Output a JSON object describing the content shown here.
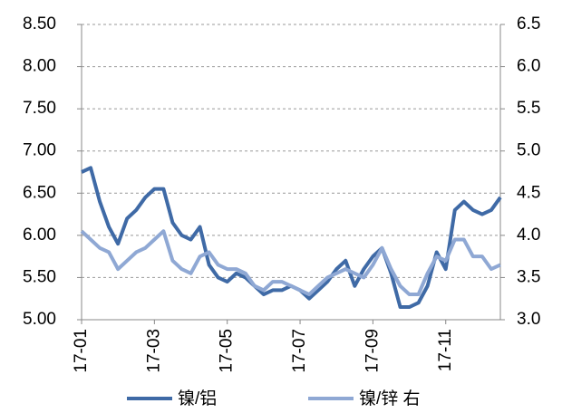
{
  "chart_data": {
    "type": "line",
    "categories": [
      "17-01",
      null,
      null,
      null,
      null,
      null,
      null,
      null,
      "17-03",
      null,
      null,
      null,
      null,
      null,
      null,
      null,
      "17-05",
      null,
      null,
      null,
      null,
      null,
      null,
      null,
      "17-07",
      null,
      null,
      null,
      null,
      null,
      null,
      null,
      "17-09",
      null,
      null,
      null,
      null,
      null,
      null,
      null,
      "17-11",
      null,
      null,
      null,
      null,
      null,
      null
    ],
    "series": [
      {
        "name": "镍/铝",
        "color": "#3f6aa6",
        "values": [
          6.75,
          6.8,
          6.4,
          6.1,
          5.9,
          6.2,
          6.3,
          6.45,
          6.55,
          6.55,
          6.15,
          6.0,
          5.95,
          6.1,
          5.65,
          5.5,
          5.45,
          5.55,
          5.5,
          5.4,
          5.3,
          5.35,
          5.35,
          5.4,
          5.35,
          5.25,
          5.35,
          5.45,
          5.6,
          5.7,
          5.4,
          5.6,
          5.75,
          5.85,
          5.55,
          5.15,
          5.15,
          5.2,
          5.4,
          5.8,
          5.6,
          6.3,
          6.4,
          6.3,
          6.25,
          6.3,
          6.45
        ]
      },
      {
        "name": "镍/锌 右",
        "color": "#8fa8d4",
        "axis": "y2",
        "values": [
          4.05,
          3.95,
          3.85,
          3.8,
          3.6,
          3.7,
          3.8,
          3.85,
          3.95,
          4.05,
          3.7,
          3.6,
          3.55,
          3.75,
          3.8,
          3.65,
          3.6,
          3.6,
          3.55,
          3.4,
          3.35,
          3.45,
          3.45,
          3.4,
          3.35,
          3.3,
          3.4,
          3.5,
          3.55,
          3.6,
          3.55,
          3.5,
          3.65,
          3.85,
          3.6,
          3.4,
          3.3,
          3.3,
          3.55,
          3.75,
          3.7,
          3.95,
          3.95,
          3.75,
          3.75,
          3.6,
          3.65
        ]
      }
    ],
    "ylim": [
      5,
      8.5
    ],
    "yticks": [
      {
        "value": 5,
        "label": "5.00"
      },
      {
        "value": 5.5,
        "label": "5.50"
      },
      {
        "value": 6,
        "label": "6.00"
      },
      {
        "value": 6.5,
        "label": "6.50"
      },
      {
        "value": 7,
        "label": "7.00"
      },
      {
        "value": 7.5,
        "label": "7.50"
      },
      {
        "value": 8,
        "label": "8.00"
      },
      {
        "value": 8.5,
        "label": "8.50"
      }
    ],
    "y2lim": [
      3,
      6.5
    ],
    "y2ticks": [
      {
        "value": 3,
        "label": "3.0"
      },
      3.5,
      {
        "value": 4,
        "label": "4.0"
      },
      4.5,
      {
        "value": 5,
        "label": "5.0"
      },
      5.5,
      {
        "value": 6,
        "label": "6.0"
      },
      6.5
    ],
    "grid": true,
    "legend": "bottom"
  }
}
